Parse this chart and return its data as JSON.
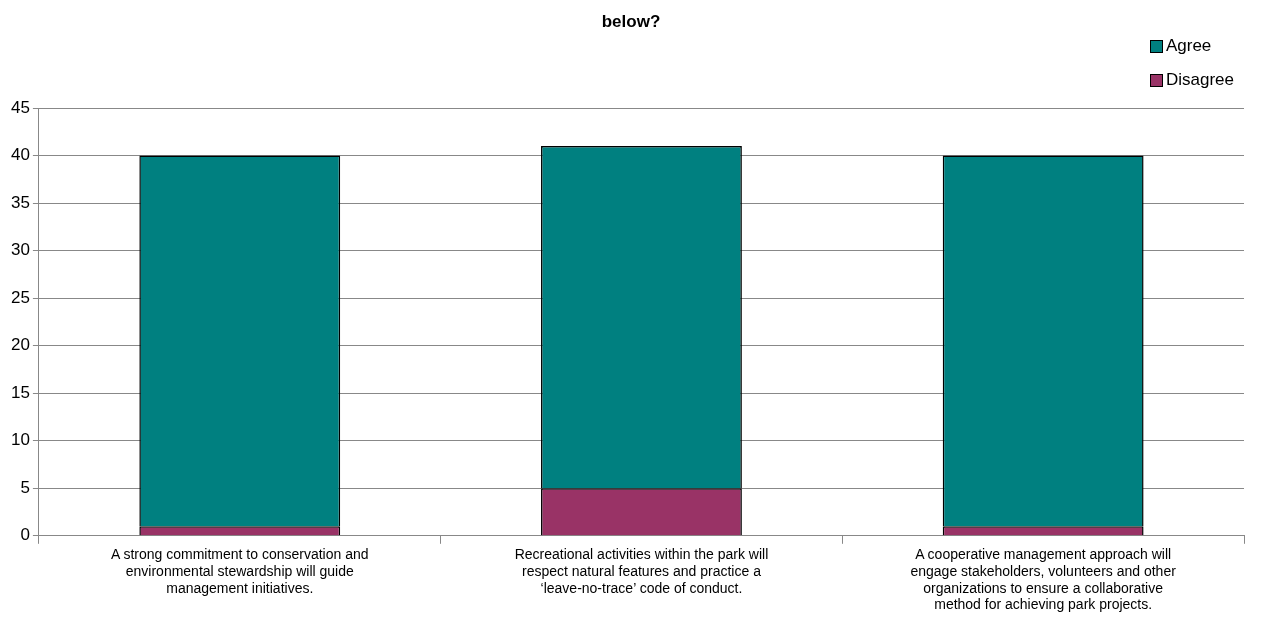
{
  "chart_data": {
    "type": "bar",
    "title": "below?",
    "stacked": true,
    "categories": [
      "A strong commitment to conservation and environmental stewardship will guide management initiatives.",
      "Recreational activities within the park will respect natural features and practice a ‘leave-no-trace’ code of conduct.",
      "A cooperative management approach will engage stakeholders, volunteers and other organizations to ensure a collaborative method for achieving park projects."
    ],
    "series": [
      {
        "name": "Disagree",
        "color": "#993366",
        "values": [
          1,
          5,
          1
        ]
      },
      {
        "name": "Agree",
        "color": "#008080",
        "values": [
          39,
          36,
          39
        ]
      }
    ],
    "ylim": [
      0,
      45
    ],
    "yticks": [
      0,
      5,
      10,
      15,
      20,
      25,
      30,
      35,
      40,
      45
    ],
    "grid": "y",
    "legend": "top right"
  }
}
